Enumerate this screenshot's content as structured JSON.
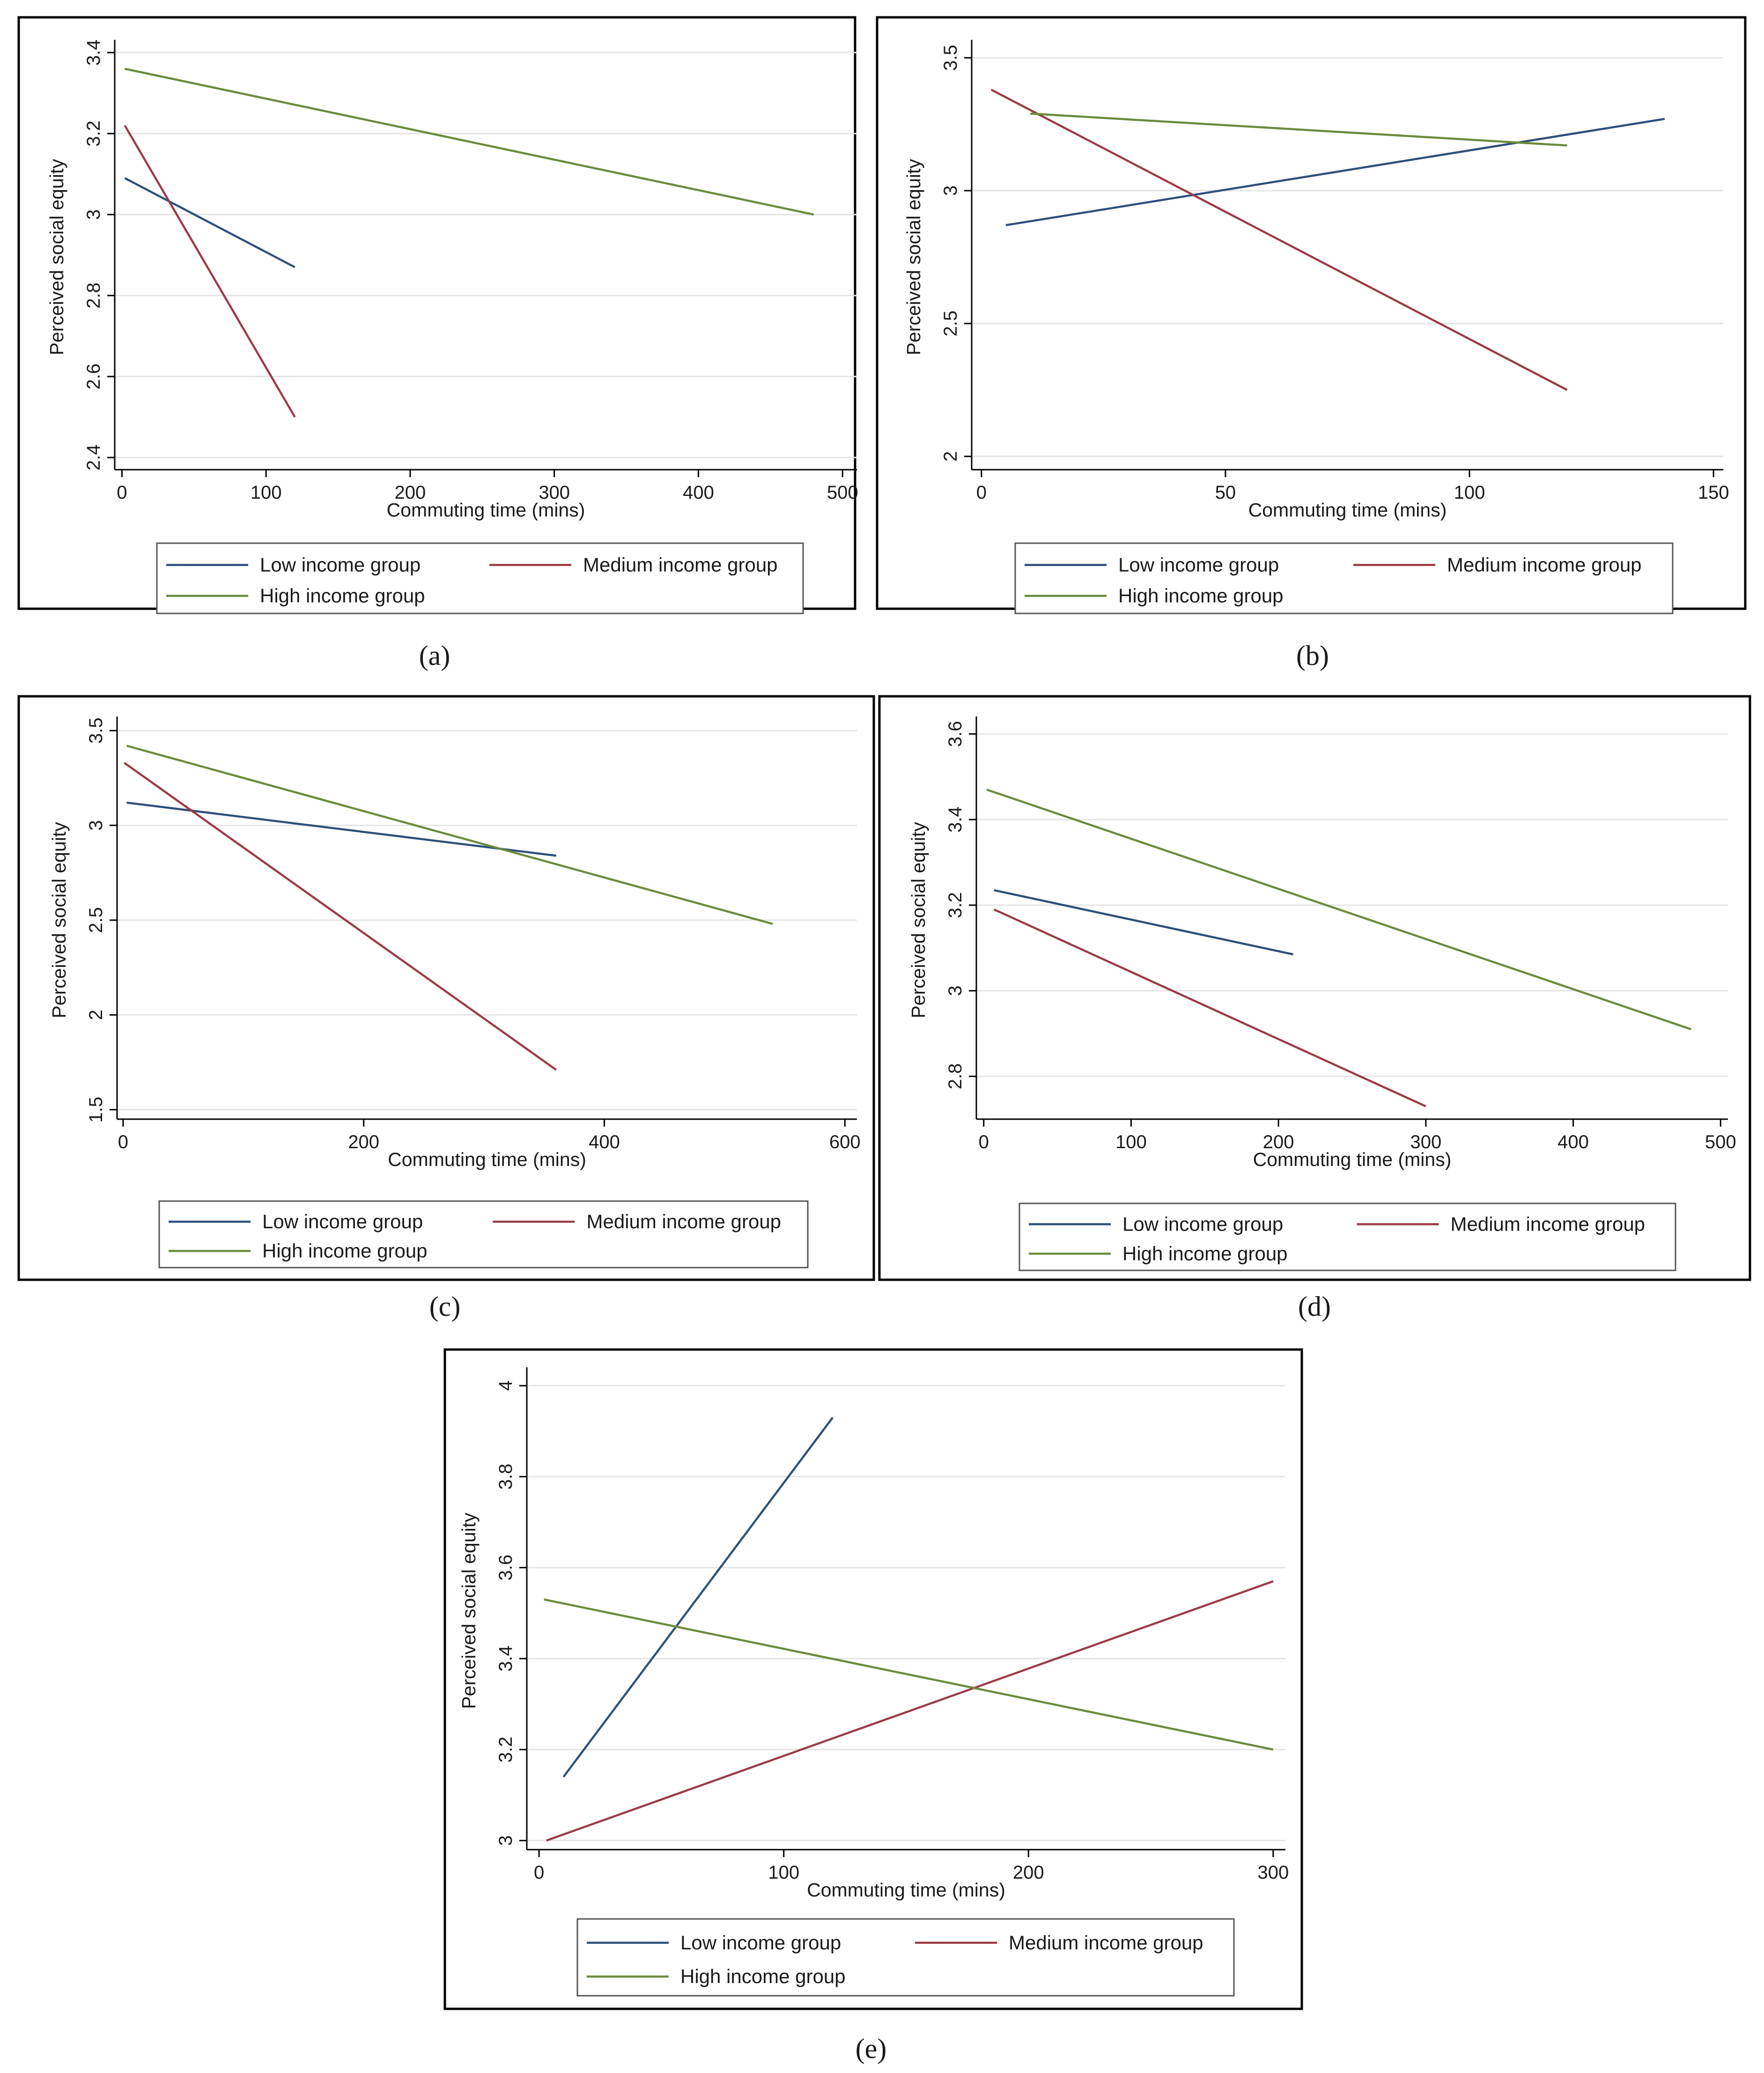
{
  "colors": {
    "low": "#2e4f7a",
    "medium": "#9b3a47",
    "high": "#6b8a3c",
    "grid": "#e4e4e4",
    "frame": "#000000",
    "axis": "#000000"
  },
  "legend_labels": {
    "low": "Low income group",
    "medium": "Medium income group",
    "high": "High income group"
  },
  "chart_data": [
    {
      "id": "a",
      "type": "line",
      "caption": "(a)",
      "xlabel": "Commuting time (mins)",
      "ylabel": "Perceived social equity",
      "xlim": [
        -5,
        510
      ],
      "ylim": [
        2.37,
        3.42
      ],
      "xticks": [
        0,
        100,
        200,
        300,
        400,
        500
      ],
      "xtick_labels": [
        "0",
        "100",
        "200",
        "300",
        "400",
        "500"
      ],
      "yticks": [
        2.4,
        2.6,
        2.8,
        3,
        3.2,
        3.4
      ],
      "ytick_labels": [
        "2.4",
        "2.6",
        "2.8",
        "3",
        "3.2",
        "3.4"
      ],
      "grid": true,
      "legend": "bottom",
      "series": [
        {
          "name": "Low income group",
          "key": "low",
          "x": [
            2,
            120
          ],
          "y": [
            3.09,
            2.87
          ]
        },
        {
          "name": "Medium income group",
          "key": "medium",
          "x": [
            2,
            120
          ],
          "y": [
            3.22,
            2.5
          ]
        },
        {
          "name": "High income group",
          "key": "high",
          "x": [
            2,
            480
          ],
          "y": [
            3.36,
            3.0
          ]
        }
      ]
    },
    {
      "id": "b",
      "type": "line",
      "caption": "(b)",
      "xlabel": "Commuting time (mins)",
      "ylabel": "Perceived social equity",
      "xlim": [
        -2,
        152
      ],
      "ylim": [
        1.95,
        3.55
      ],
      "xticks": [
        0,
        50,
        100,
        150
      ],
      "xtick_labels": [
        "0",
        "50",
        "100",
        "150"
      ],
      "yticks": [
        2,
        2.5,
        3,
        3.5
      ],
      "ytick_labels": [
        "2",
        "2.5",
        "3",
        "3.5"
      ],
      "grid": true,
      "legend": "bottom",
      "series": [
        {
          "name": "Low income group",
          "key": "low",
          "x": [
            5,
            140
          ],
          "y": [
            2.87,
            3.27
          ]
        },
        {
          "name": "Medium income group",
          "key": "medium",
          "x": [
            2,
            120
          ],
          "y": [
            3.38,
            2.25
          ]
        },
        {
          "name": "High income group",
          "key": "high",
          "x": [
            10,
            120
          ],
          "y": [
            3.29,
            3.17
          ]
        }
      ]
    },
    {
      "id": "c",
      "type": "line",
      "caption": "(c)",
      "xlabel": "Commuting time (mins)",
      "ylabel": "Perceived social equity",
      "xlim": [
        -5,
        610
      ],
      "ylim": [
        1.45,
        3.55
      ],
      "xticks": [
        0,
        200,
        400,
        600
      ],
      "xtick_labels": [
        "0",
        "200",
        "400",
        "600"
      ],
      "yticks": [
        1.5,
        2,
        2.5,
        3,
        3.5
      ],
      "ytick_labels": [
        "1.5",
        "2",
        "2.5",
        "3",
        "3.5"
      ],
      "grid": true,
      "legend": "bottom",
      "series": [
        {
          "name": "Low income group",
          "key": "low",
          "x": [
            3,
            360
          ],
          "y": [
            3.12,
            2.84
          ]
        },
        {
          "name": "Medium income group",
          "key": "medium",
          "x": [
            1,
            360
          ],
          "y": [
            3.33,
            1.71
          ]
        },
        {
          "name": "High income group",
          "key": "high",
          "x": [
            3,
            540
          ],
          "y": [
            3.42,
            2.48
          ]
        }
      ]
    },
    {
      "id": "d",
      "type": "line",
      "caption": "(d)",
      "xlabel": "Commuting time (mins)",
      "ylabel": "Perceived social equity",
      "xlim": [
        -5,
        505
      ],
      "ylim": [
        2.7,
        3.63
      ],
      "xticks": [
        0,
        100,
        200,
        300,
        400,
        500
      ],
      "xtick_labels": [
        "0",
        "100",
        "200",
        "300",
        "400",
        "500"
      ],
      "yticks": [
        2.8,
        3,
        3.2,
        3.4,
        3.6
      ],
      "ytick_labels": [
        "2.8",
        "3",
        "3.2",
        "3.4",
        "3.6"
      ],
      "grid": true,
      "legend": "bottom",
      "series": [
        {
          "name": "Low income group",
          "key": "low",
          "x": [
            7,
            210
          ],
          "y": [
            3.235,
            3.085
          ]
        },
        {
          "name": "Medium income group",
          "key": "medium",
          "x": [
            7,
            300
          ],
          "y": [
            3.19,
            2.73
          ]
        },
        {
          "name": "High income group",
          "key": "high",
          "x": [
            2,
            480
          ],
          "y": [
            3.47,
            2.91
          ]
        }
      ]
    },
    {
      "id": "e",
      "type": "line",
      "caption": "(e)",
      "xlabel": "Commuting time (mins)",
      "ylabel": "Perceived social equity",
      "xlim": [
        -5,
        305
      ],
      "ylim": [
        2.98,
        4.03
      ],
      "xticks": [
        0,
        100,
        200,
        300
      ],
      "xtick_labels": [
        "0",
        "100",
        "200",
        "300"
      ],
      "yticks": [
        3,
        3.2,
        3.4,
        3.6,
        3.8,
        4
      ],
      "ytick_labels": [
        "3",
        "3.2",
        "3.4",
        "3.6",
        "3.8",
        "4"
      ],
      "grid": true,
      "legend": "bottom",
      "series": [
        {
          "name": "Low income group",
          "key": "low",
          "x": [
            10,
            120
          ],
          "y": [
            3.14,
            3.93
          ]
        },
        {
          "name": "Medium income group",
          "key": "medium",
          "x": [
            3,
            300
          ],
          "y": [
            3.0,
            3.57
          ]
        },
        {
          "name": "High income group",
          "key": "high",
          "x": [
            2,
            300
          ],
          "y": [
            3.53,
            3.2
          ]
        }
      ]
    }
  ]
}
